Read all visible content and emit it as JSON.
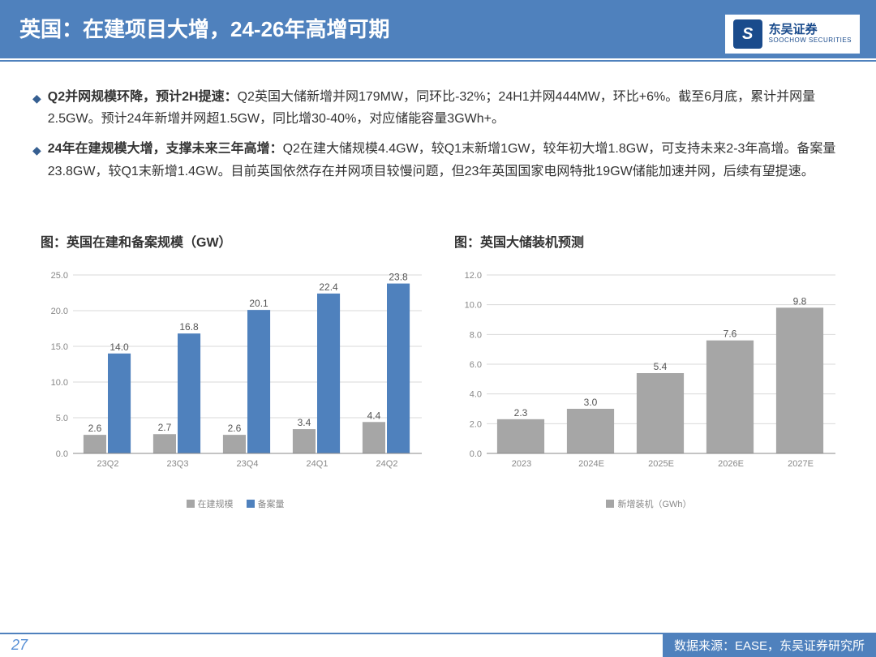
{
  "header": {
    "title": "英国：在建项目大增，24-26年高增可期"
  },
  "logo": {
    "cn": "东吴证券",
    "en": "SOOCHOW SECURITIES"
  },
  "bullets": [
    {
      "bold": "Q2并网规模环降，预计2H提速：",
      "text": "Q2英国大储新增并网179MW，同环比-32%；24H1并网444MW，环比+6%。截至6月底，累计并网量2.5GW。预计24年新增并网超1.5GW，同比增30-40%，对应储能容量3GWh+。"
    },
    {
      "bold": "24年在建规模大增，支撑未来三年高增：",
      "text": "Q2在建大储规模4.4GW，较Q1末新增1GW，较年初大增1.8GW，可支持未来2-3年高增。备案量23.8GW，较Q1末新增1.4GW。目前英国依然存在并网项目较慢问题，但23年英国国家电网特批19GW储能加速并网，后续有望提速。"
    }
  ],
  "chart1": {
    "title": "图：英国在建和备案规模（GW）",
    "categories": [
      "23Q2",
      "23Q3",
      "23Q4",
      "24Q1",
      "24Q2"
    ],
    "series1": {
      "name": "在建规模",
      "values": [
        2.6,
        2.7,
        2.6,
        3.4,
        4.4
      ],
      "color": "#a6a6a6"
    },
    "series2": {
      "name": "备案量",
      "values": [
        14.0,
        16.8,
        20.1,
        22.4,
        23.8
      ],
      "color": "#4f81bd"
    },
    "ymax": 25,
    "ystep": 5,
    "grid_color": "#d9d9d9",
    "axis_color": "#888"
  },
  "chart2": {
    "title": "图：英国大储装机预测",
    "categories": [
      "2023",
      "2024E",
      "2025E",
      "2026E",
      "2027E"
    ],
    "series1": {
      "name": "新增装机（GWh）",
      "values": [
        2.3,
        3.0,
        5.4,
        7.6,
        9.8
      ],
      "color": "#a6a6a6"
    },
    "ymax": 12,
    "ystep": 2,
    "grid_color": "#d9d9d9",
    "axis_color": "#888"
  },
  "footer": {
    "page": "27",
    "source": "数据来源：EASE，东吴证券研究所"
  }
}
